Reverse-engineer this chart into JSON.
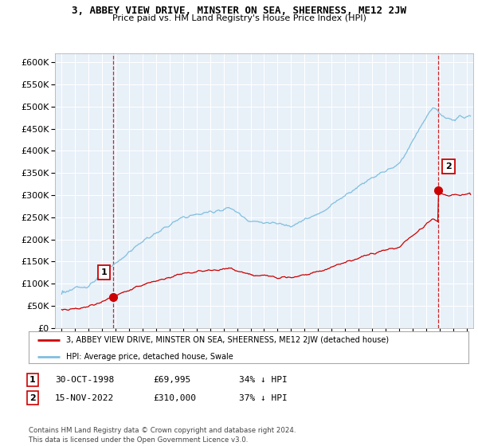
{
  "title": "3, ABBEY VIEW DRIVE, MINSTER ON SEA, SHEERNESS, ME12 2JW",
  "subtitle": "Price paid vs. HM Land Registry's House Price Index (HPI)",
  "yticks": [
    0,
    50000,
    100000,
    150000,
    200000,
    250000,
    300000,
    350000,
    400000,
    450000,
    500000,
    550000,
    600000
  ],
  "ylim": [
    0,
    620000
  ],
  "xlim_start": 1994.5,
  "xlim_end": 2025.5,
  "hpi_color": "#7fbfdf",
  "price_color": "#cc0000",
  "sale1_date": 1998.83,
  "sale1_price": 69995,
  "sale1_label": "1",
  "sale2_date": 2022.88,
  "sale2_price": 310000,
  "sale2_label": "2",
  "vline_color": "#cc0000",
  "legend_line1": "3, ABBEY VIEW DRIVE, MINSTER ON SEA, SHEERNESS, ME12 2JW (detached house)",
  "legend_line2": "HPI: Average price, detached house, Swale",
  "table_rows": [
    [
      "1",
      "30-OCT-1998",
      "£69,995",
      "34% ↓ HPI"
    ],
    [
      "2",
      "15-NOV-2022",
      "£310,000",
      "37% ↓ HPI"
    ]
  ],
  "footnote": "Contains HM Land Registry data © Crown copyright and database right 2024.\nThis data is licensed under the Open Government Licence v3.0.",
  "background_color": "#ffffff",
  "plot_bg_color": "#e8f0f8",
  "grid_color": "#ffffff"
}
